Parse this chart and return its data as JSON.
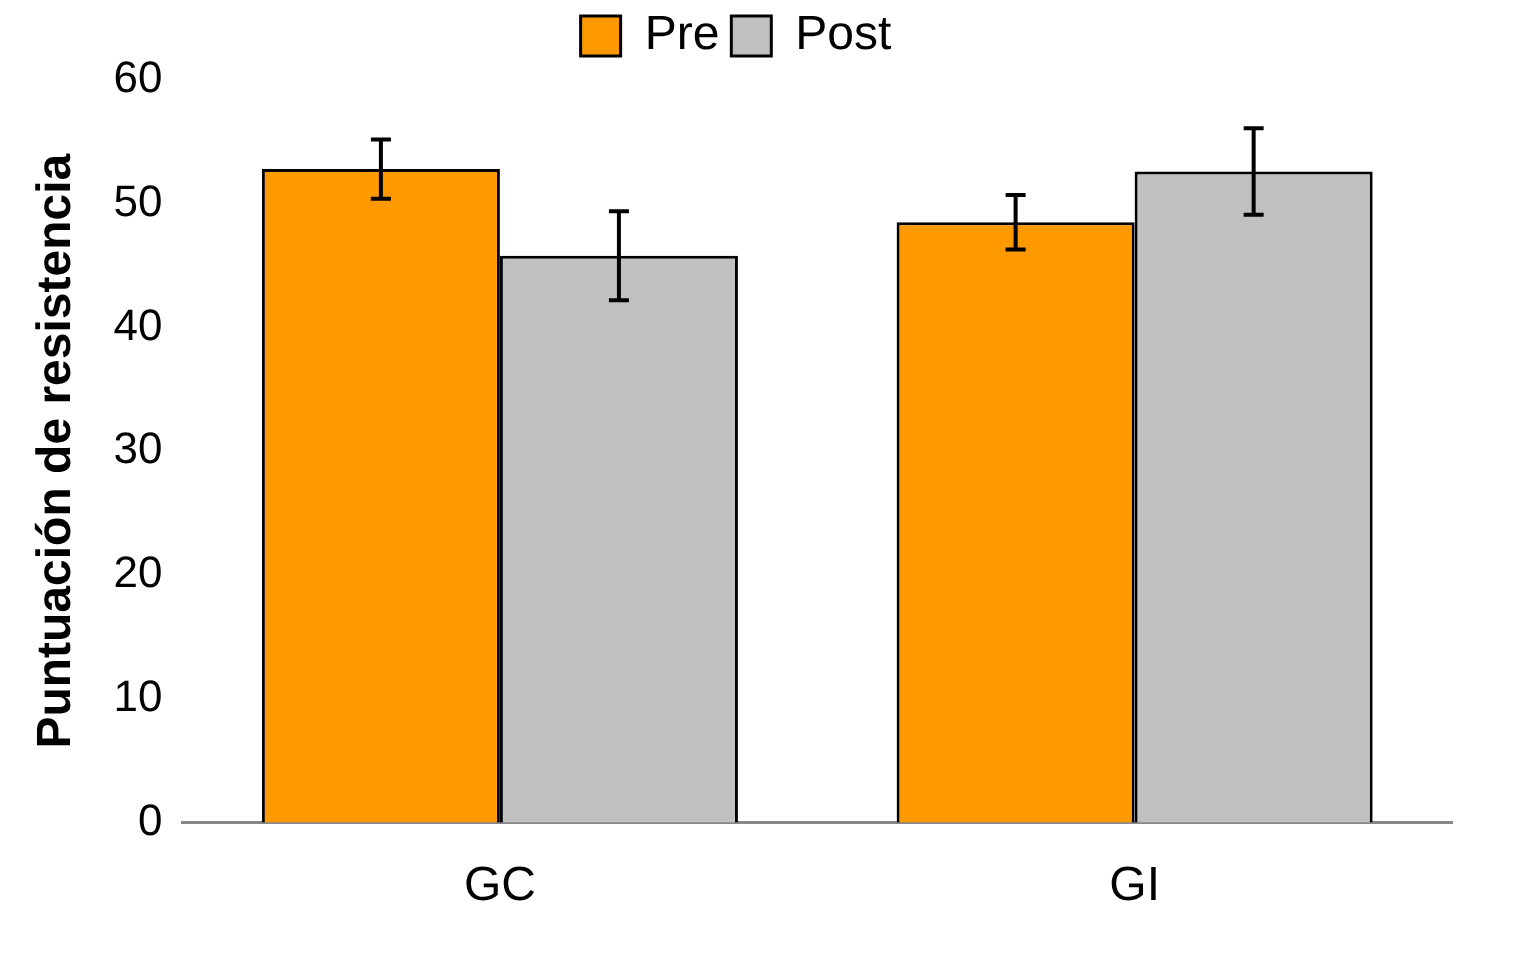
{
  "chart_data": {
    "type": "bar",
    "ylabel": "Puntuación de resistencia",
    "categories": [
      "GC",
      "GI"
    ],
    "series": [
      {
        "name": "Pre",
        "color": "#ff9900",
        "values": [
          52.8,
          48.5
        ],
        "errors": [
          2.4,
          2.2
        ]
      },
      {
        "name": "Post",
        "color": "#c0c0c0",
        "values": [
          45.8,
          52.6
        ],
        "errors": [
          3.6,
          3.5
        ]
      }
    ],
    "ylim": [
      0,
      60
    ],
    "yticks": [
      0,
      10,
      20,
      30,
      40,
      50,
      60
    ],
    "grid": false,
    "legend": "top"
  }
}
